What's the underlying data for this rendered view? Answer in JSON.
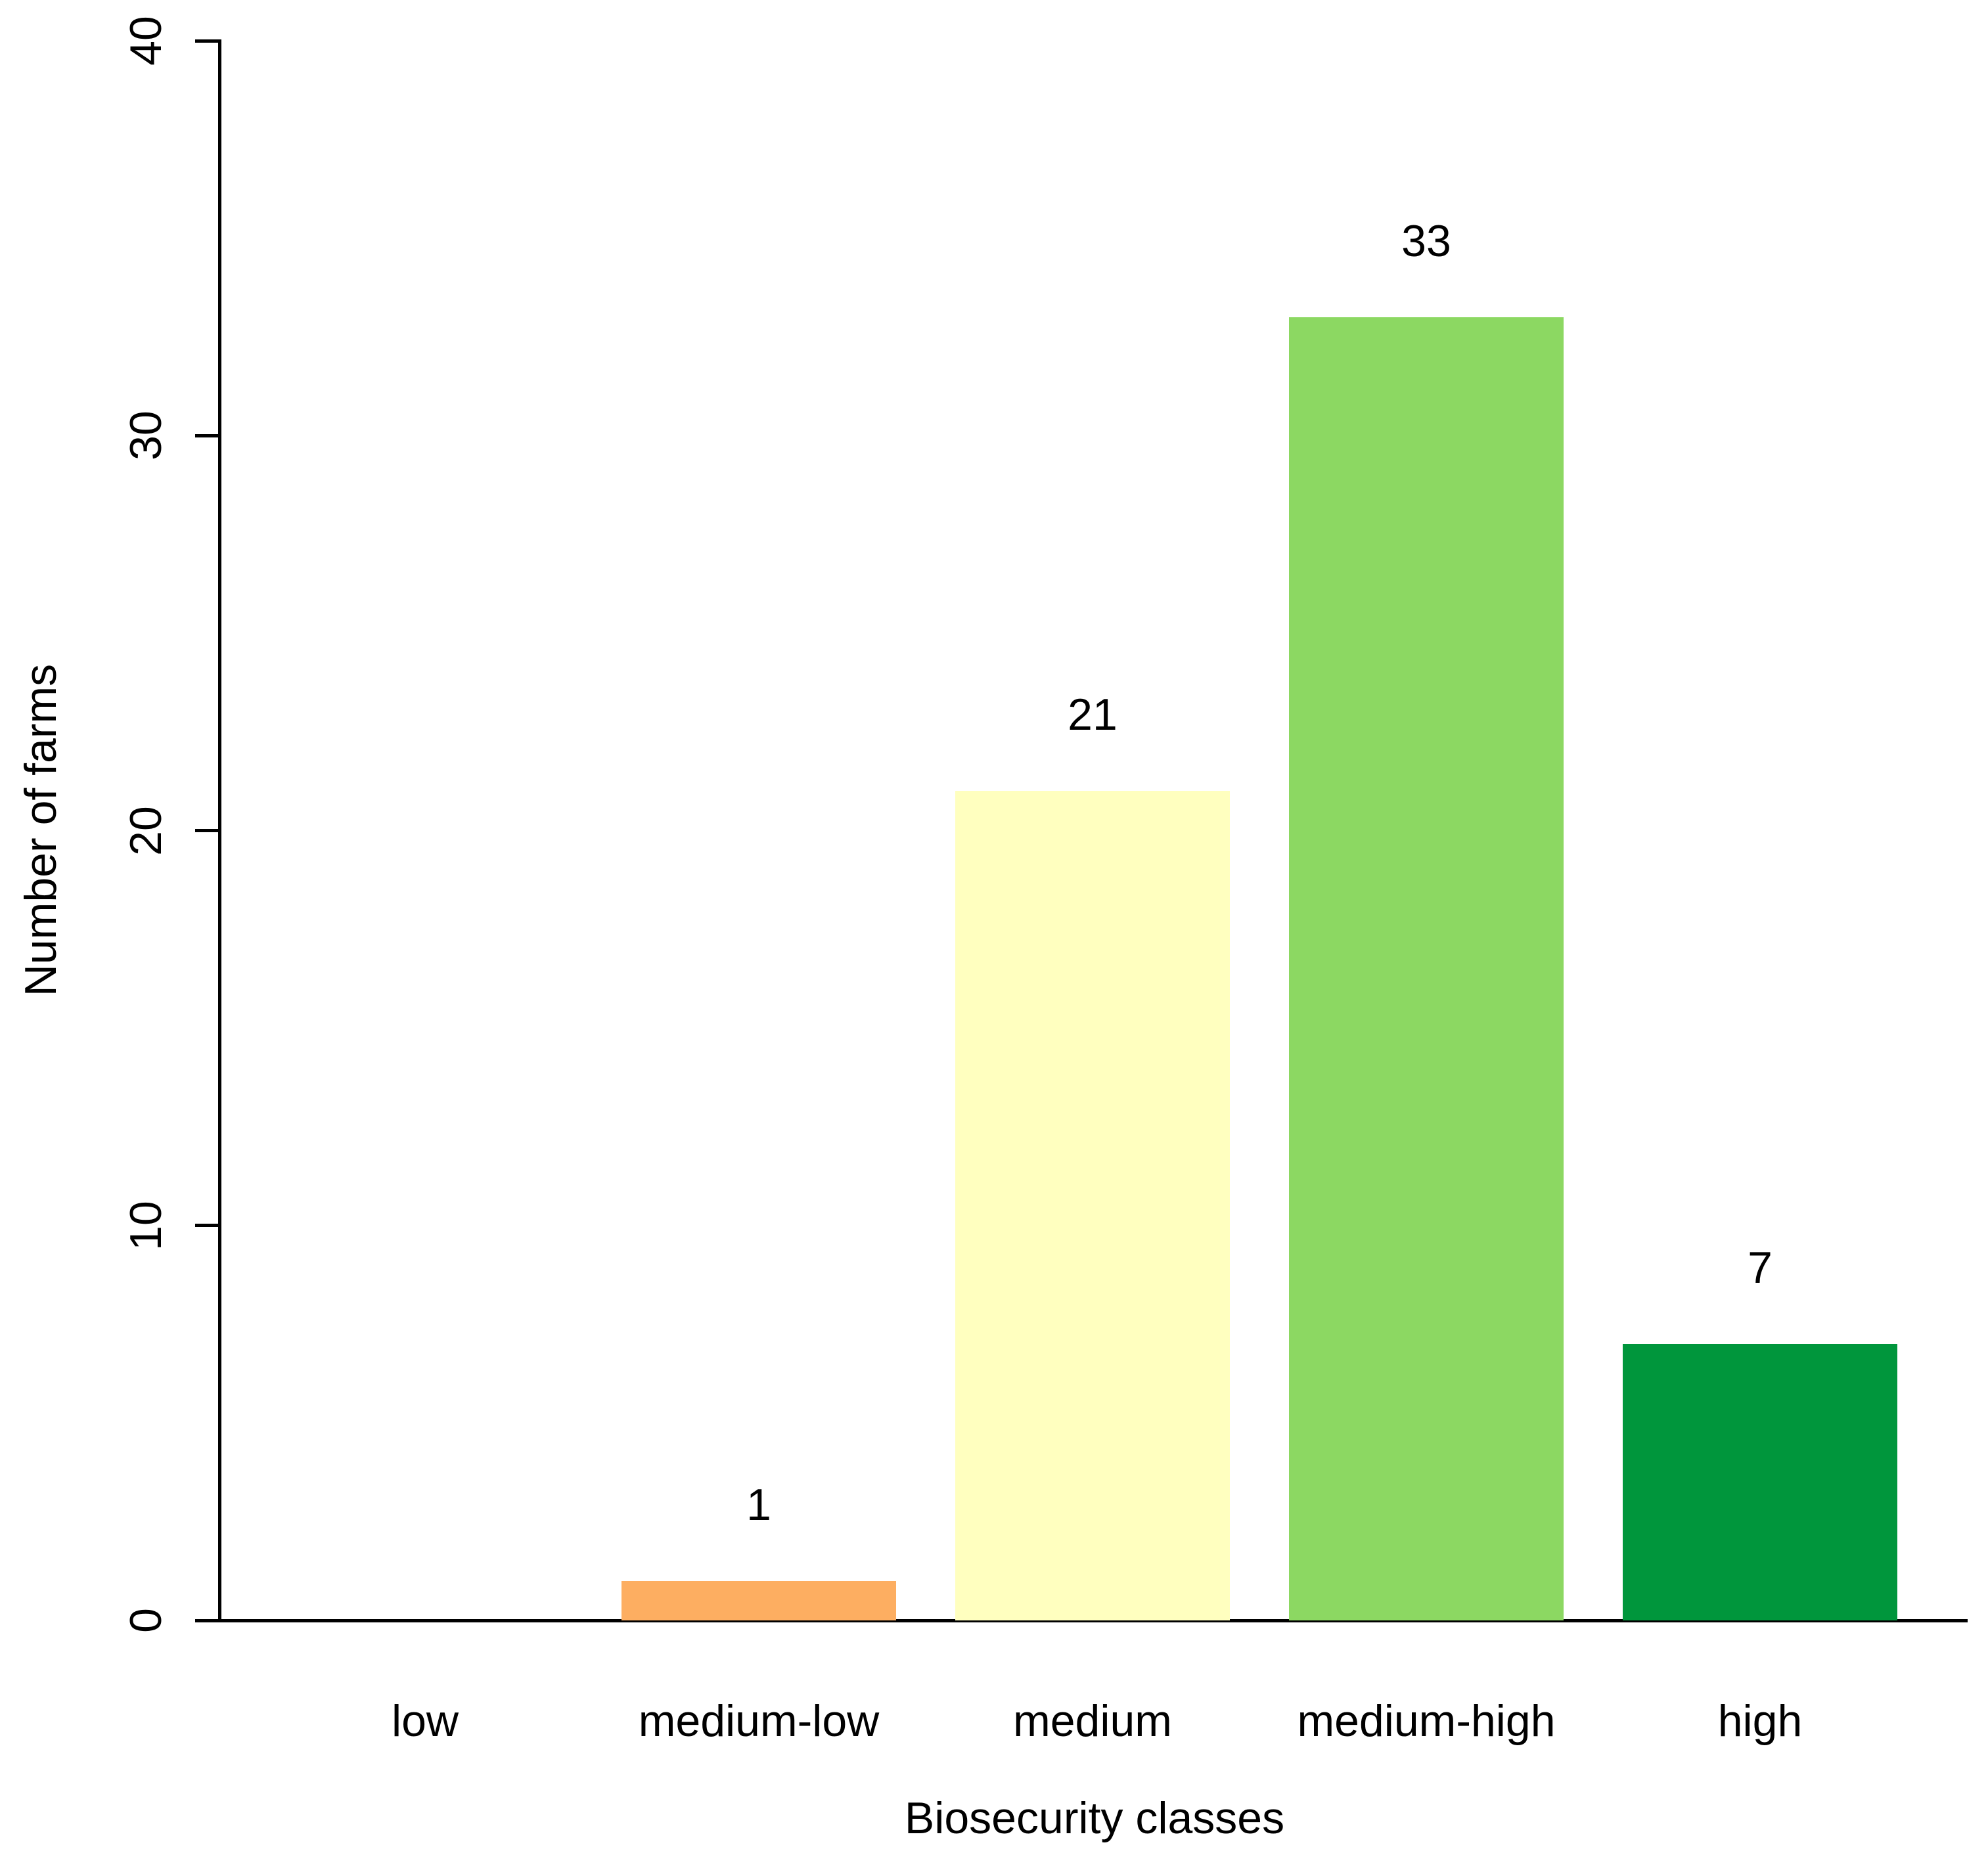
{
  "chart_data": {
    "type": "bar",
    "title": "",
    "xlabel": "Biosecurity classes",
    "ylabel": "Number of farms",
    "categories": [
      "low",
      "medium-low",
      "medium",
      "medium-high",
      "high"
    ],
    "values": [
      0,
      1,
      21,
      33,
      7
    ],
    "value_labels": [
      "",
      "1",
      "21",
      "33",
      "7"
    ],
    "bar_colors": [
      null,
      "#FDAE61",
      "#FFFFBF",
      "#8CD862",
      "#00963C"
    ],
    "y_ticks": [
      0,
      10,
      20,
      30,
      40
    ],
    "y_tick_labels": [
      "0",
      "10",
      "20",
      "30",
      "40"
    ],
    "ylim": [
      0,
      40
    ],
    "grid": "off",
    "legend": "none",
    "axis_color": "#000000",
    "text_color": "#000000",
    "background_color": "#ffffff"
  }
}
